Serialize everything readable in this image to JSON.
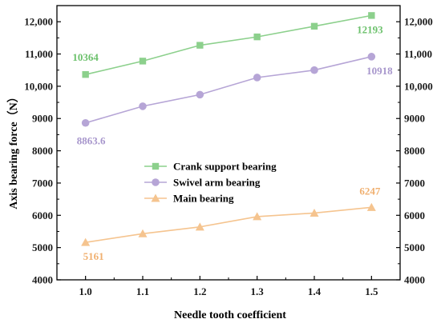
{
  "chart_data": {
    "type": "line",
    "title": "",
    "xlabel": "Needle tooth coefficient",
    "ylabel": "Axis bearing force（N）",
    "x": [
      1.0,
      1.1,
      1.2,
      1.3,
      1.4,
      1.5
    ],
    "x_tick_labels": [
      "1.0",
      "1.1",
      "1.2",
      "1.3",
      "1.4",
      "1.5"
    ],
    "xlim": [
      0.95,
      1.55
    ],
    "ylim": [
      4000,
      12500
    ],
    "y_ticks": [
      4000,
      5000,
      6000,
      7000,
      8000,
      9000,
      10000,
      11000,
      12000
    ],
    "y_tick_labels": [
      "4000",
      "5000",
      "6000",
      "7000",
      "8000",
      "9000",
      "10,000",
      "11,000",
      "12,000"
    ],
    "grid": false,
    "secondary_y_axis": "mirror",
    "legend_position": "center-left",
    "series": [
      {
        "name": "Crank support bearing",
        "marker": "square",
        "color": "#8cd08c",
        "label_color": "#6cc16c",
        "values": [
          10364,
          10780,
          11270,
          11530,
          11860,
          12193
        ],
        "annotations": [
          {
            "index": 0,
            "text": "10364"
          },
          {
            "index": 5,
            "text": "12193"
          }
        ]
      },
      {
        "name": "Swivel arm bearing",
        "marker": "circle",
        "color": "#b6a5d6",
        "label_color": "#a796cc",
        "values": [
          8863.6,
          9380,
          9740,
          10270,
          10500,
          10918
        ],
        "annotations": [
          {
            "index": 0,
            "text": "8863.6"
          },
          {
            "index": 5,
            "text": "10918"
          }
        ]
      },
      {
        "name": "Main bearing",
        "marker": "triangle",
        "color": "#f5c48f",
        "label_color": "#f0b070",
        "values": [
          5161,
          5430,
          5640,
          5960,
          6070,
          6247
        ],
        "annotations": [
          {
            "index": 0,
            "text": "5161"
          },
          {
            "index": 5,
            "text": "6247"
          }
        ]
      }
    ]
  }
}
